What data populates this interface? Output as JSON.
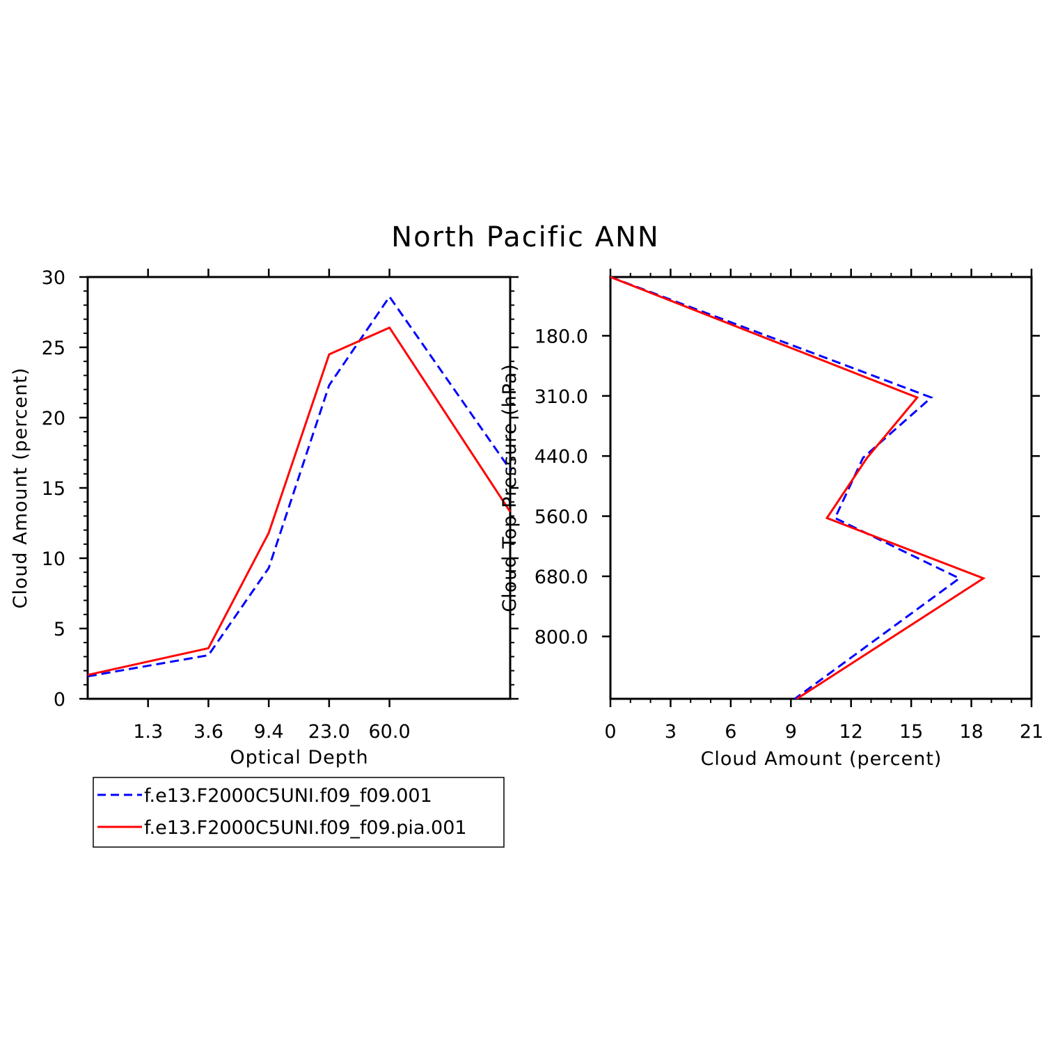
{
  "title": "North Pacific ANN",
  "colors": {
    "series1": "#0000ff",
    "series2": "#ff0000",
    "axis": "#000000"
  },
  "legend": {
    "entries": [
      {
        "label": "f.e13.F2000C5UNI.f09_f09.001",
        "style": "dashed",
        "color": "#0000ff"
      },
      {
        "label": "f.e13.F2000C5UNI.f09_f09.pia.001",
        "style": "solid",
        "color": "#ff0000"
      }
    ]
  },
  "chart_data": [
    {
      "type": "line",
      "xlabel": "Optical Depth",
      "ylabel": "Cloud Amount (percent)",
      "x_tick_labels": [
        "1.3",
        "3.6",
        "9.4",
        "23.0",
        "60.0"
      ],
      "x_bins": 7,
      "ylim": [
        0,
        30
      ],
      "y_ticks": [
        "0",
        "5",
        "10",
        "15",
        "20",
        "25",
        "30"
      ],
      "grid": false,
      "series": [
        {
          "name": "f.e13.F2000C5UNI.f09_f09.001",
          "style": "dashed",
          "values": [
            1.6,
            3.1,
            9.3,
            22.3,
            28.6,
            16.3
          ]
        },
        {
          "name": "f.e13.F2000C5UNI.f09_f09.pia.001",
          "style": "solid",
          "values": [
            1.7,
            3.6,
            11.8,
            24.5,
            26.4,
            13.3
          ]
        }
      ]
    },
    {
      "type": "line",
      "xlabel": "Cloud Amount (percent)",
      "ylabel": "Cloud Top Pressure (hPa)",
      "xlim": [
        0,
        21
      ],
      "x_ticks": [
        "0",
        "3",
        "6",
        "9",
        "12",
        "15",
        "18",
        "21"
      ],
      "y_tick_labels": [
        "180.0",
        "310.0",
        "440.0",
        "560.0",
        "680.0",
        "800.0"
      ],
      "y_levels": 7,
      "grid": false,
      "series": [
        {
          "name": "f.e13.F2000C5UNI.f09_f09.001",
          "style": "dashed",
          "values": [
            0.0,
            16.0,
            12.6,
            11.2,
            17.4,
            9.2
          ]
        },
        {
          "name": "f.e13.F2000C5UNI.f09_f09.pia.001",
          "style": "solid",
          "values": [
            0.0,
            15.3,
            12.8,
            10.8,
            18.6,
            9.3
          ]
        }
      ]
    }
  ]
}
